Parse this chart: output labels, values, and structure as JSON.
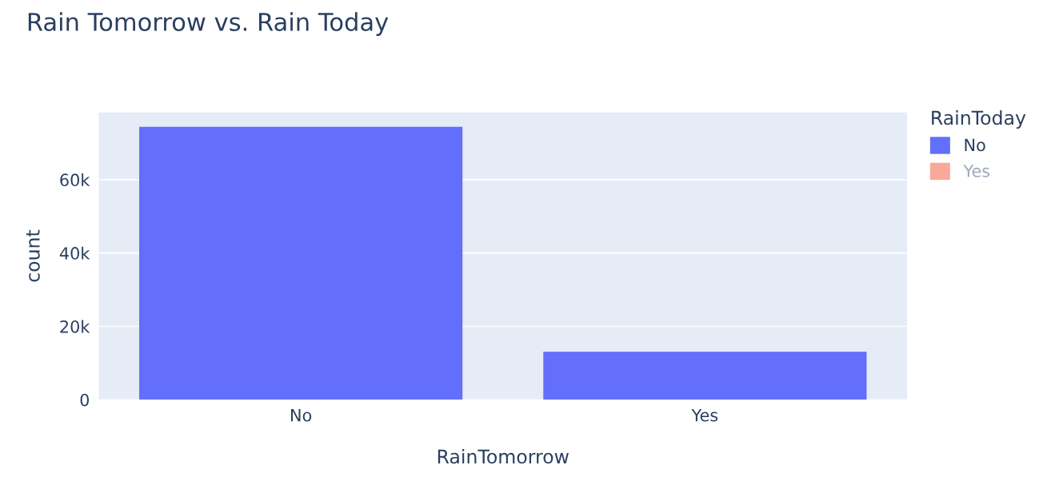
{
  "chart_data": {
    "type": "bar",
    "title": "Rain Tomorrow vs. Rain Today",
    "xlabel": "RainTomorrow",
    "ylabel": "count",
    "legend_title": "RainToday",
    "categories": [
      "No",
      "Yes"
    ],
    "series": [
      {
        "name": "No",
        "color": "#636efa",
        "values": [
          74400,
          13100
        ]
      },
      {
        "name": "Yes",
        "color": "#f9a99a",
        "values": [
          null,
          null
        ]
      }
    ],
    "ylim": [
      0,
      78300
    ],
    "yticks": [
      0,
      {
        "value": 20000,
        "label": "20k"
      },
      {
        "value": 40000,
        "label": "40k"
      },
      {
        "value": 60000,
        "label": "60k"
      }
    ],
    "grid": "y",
    "legend": "top right"
  }
}
